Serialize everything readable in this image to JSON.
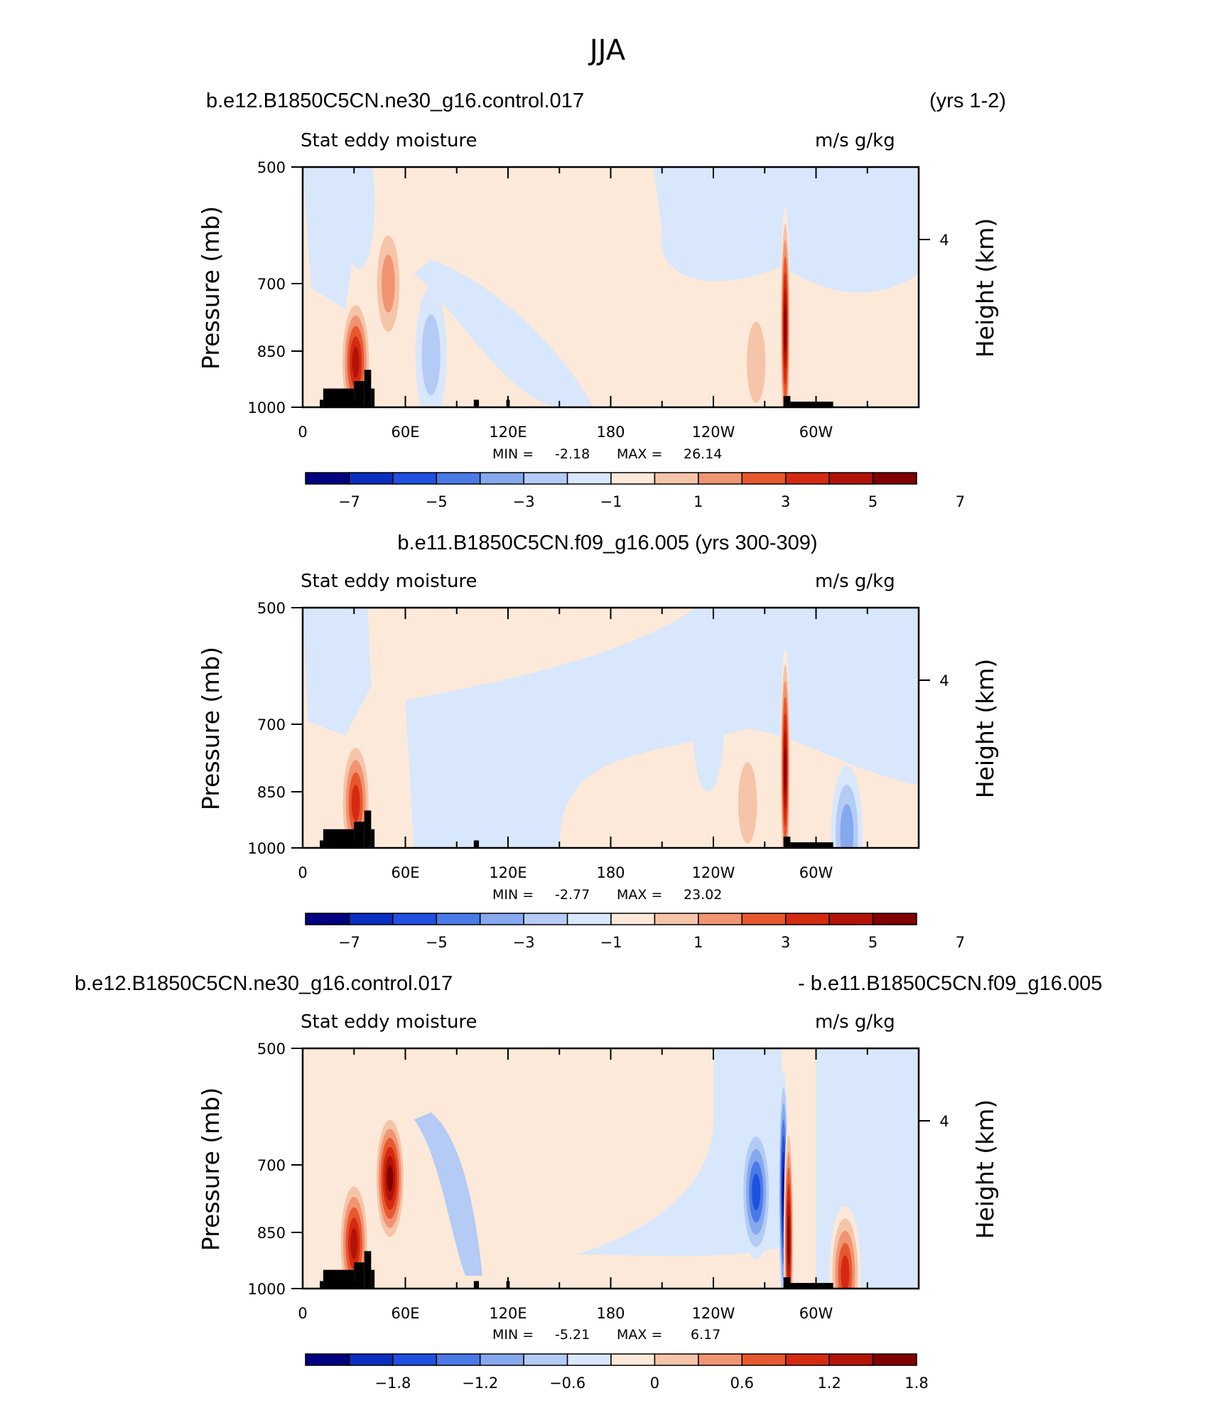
{
  "figure_title": "JJA",
  "panels": [
    {
      "case_left": "b.e12.B1850C5CN.ne30_g16.control.017",
      "case_right": "(yrs 1-2)",
      "case_center": "",
      "variable": "Stat eddy moisture",
      "units": "m/s g/kg",
      "min_label": "MIN =",
      "min_value": "-2.18",
      "max_label": "MAX =",
      "max_value": "26.14",
      "colorbar_ticks": [
        "−7",
        "−5",
        "−3",
        "−1",
        "1",
        "3",
        "5",
        "7"
      ]
    },
    {
      "case_left": "",
      "case_right": "",
      "case_center": "b.e11.B1850C5CN.f09_g16.005 (yrs 300-309)",
      "variable": "Stat eddy moisture",
      "units": "m/s g/kg",
      "min_label": "MIN =",
      "min_value": "-2.77",
      "max_label": "MAX =",
      "max_value": "23.02",
      "colorbar_ticks": [
        "−7",
        "−5",
        "−3",
        "−1",
        "1",
        "3",
        "5",
        "7"
      ]
    },
    {
      "case_left": "b.e12.B1850C5CN.ne30_g16.control.017",
      "case_right": "- b.e11.B1850C5CN.f09_g16.005",
      "case_center": "",
      "variable": "Stat eddy moisture",
      "units": "m/s g/kg",
      "min_label": "MIN =",
      "min_value": "-5.21",
      "max_label": "MAX =",
      "max_value": "6.17",
      "colorbar_ticks": [
        "−1.8",
        "−1.2",
        "−0.6",
        "0",
        "0.6",
        "1.2",
        "1.8"
      ]
    }
  ],
  "axes": {
    "ylabel": "Pressure (mb)",
    "y2label": "Height (km)",
    "yticks": [
      "500",
      "700",
      "850",
      "1000"
    ],
    "y2ticks": [
      "4"
    ],
    "xticks": [
      "0",
      "60E",
      "120E",
      "180",
      "120W",
      "60W"
    ]
  },
  "colors": {
    "palette": [
      "#000080",
      "#0a2ec0",
      "#1f50e0",
      "#4a7ae6",
      "#86a8ee",
      "#b4cbf5",
      "#d8e7fb",
      "#fde9d9",
      "#f6c4a8",
      "#f09472",
      "#e8582f",
      "#d42a12",
      "#b31306",
      "#800000"
    ],
    "topography": "#000000"
  },
  "chart_data": [
    {
      "type": "heatmap",
      "title": "Stat eddy moisture",
      "xlabel": "",
      "ylabel": "Pressure (mb)",
      "xlim": [
        0,
        360
      ],
      "ylim": [
        1000,
        500
      ],
      "x_ticks": [
        0,
        60,
        120,
        180,
        240,
        300
      ],
      "y_ticks": [
        500,
        700,
        850,
        1000
      ],
      "contour_levels": [
        -7,
        -6,
        -5,
        -4,
        -3,
        -2,
        -1,
        0,
        1,
        2,
        3,
        4,
        5,
        6,
        7
      ],
      "min": -2.18,
      "max": 26.14,
      "features": [
        {
          "lon": 31,
          "p": 880,
          "value": 6.5
        },
        {
          "lon": 50,
          "p": 700,
          "value": 3.0
        },
        {
          "lon": 282,
          "p": 800,
          "value": 26.14
        },
        {
          "lon": 265,
          "p": 880,
          "value": 2.2
        },
        {
          "lon": 33,
          "p": 560,
          "value": -1.5
        },
        {
          "lon": 75,
          "p": 860,
          "value": -1.8
        }
      ]
    },
    {
      "type": "heatmap",
      "title": "Stat eddy moisture",
      "xlabel": "",
      "ylabel": "Pressure (mb)",
      "xlim": [
        0,
        360
      ],
      "ylim": [
        1000,
        500
      ],
      "x_ticks": [
        0,
        60,
        120,
        180,
        240,
        300
      ],
      "y_ticks": [
        500,
        700,
        850,
        1000
      ],
      "contour_levels": [
        -7,
        -6,
        -5,
        -4,
        -3,
        -2,
        -1,
        0,
        1,
        2,
        3,
        4,
        5,
        6,
        7
      ],
      "min": -2.77,
      "max": 23.02,
      "features": [
        {
          "lon": 31,
          "p": 880,
          "value": 5.5
        },
        {
          "lon": 282,
          "p": 800,
          "value": 23.02
        },
        {
          "lon": 260,
          "p": 880,
          "value": 2.2
        },
        {
          "lon": 237,
          "p": 700,
          "value": -1.5
        },
        {
          "lon": 318,
          "p": 960,
          "value": -2.77
        }
      ]
    },
    {
      "type": "heatmap",
      "title": "Stat eddy moisture",
      "xlabel": "",
      "ylabel": "Pressure (mb)",
      "xlim": [
        0,
        360
      ],
      "ylim": [
        1000,
        500
      ],
      "x_ticks": [
        0,
        60,
        120,
        180,
        240,
        300
      ],
      "y_ticks": [
        500,
        700,
        850,
        1000
      ],
      "contour_levels": [
        -2.1,
        -1.8,
        -1.5,
        -1.2,
        -0.9,
        -0.6,
        -0.3,
        0,
        0.3,
        0.6,
        0.9,
        1.2,
        1.5,
        1.8,
        2.1
      ],
      "min": -5.21,
      "max": 6.17,
      "features": [
        {
          "lon": 51,
          "p": 730,
          "value": 2.0
        },
        {
          "lon": 30,
          "p": 880,
          "value": 1.8
        },
        {
          "lon": 281,
          "p": 760,
          "value": -5.21
        },
        {
          "lon": 284,
          "p": 870,
          "value": 6.17
        },
        {
          "lon": 265,
          "p": 760,
          "value": -1.4
        },
        {
          "lon": 317,
          "p": 960,
          "value": 1.5
        }
      ]
    }
  ]
}
